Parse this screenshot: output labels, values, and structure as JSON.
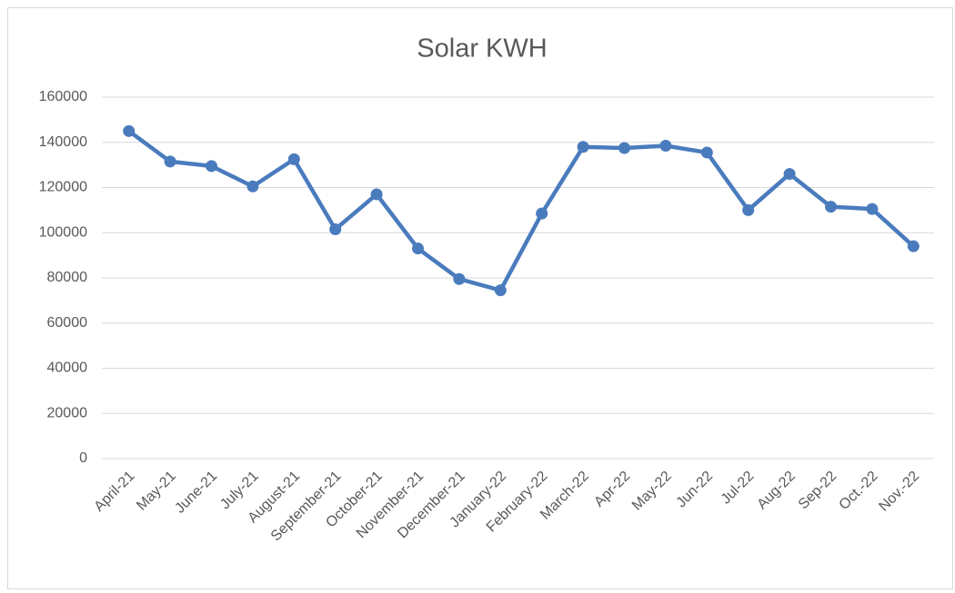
{
  "chart_data": {
    "type": "line",
    "title": "Solar KWH",
    "categories": [
      "April-21",
      "May-21",
      "June-21",
      "July-21",
      "August-21",
      "September-21",
      "October-21",
      "November-21",
      "December-21",
      "January-22",
      "February-22",
      "March-22",
      "Apr-22",
      "May-22",
      "Jun-22",
      "Jul-22",
      "Aug-22",
      "Sep-22",
      "Oct.-22",
      "Nov.-22"
    ],
    "series": [
      {
        "name": "Solar KWH",
        "color": "#4a7bbd",
        "values": [
          145000,
          131500,
          129500,
          120500,
          132500,
          101500,
          117000,
          93000,
          79500,
          74500,
          108500,
          138000,
          137500,
          138500,
          135500,
          110000,
          126000,
          111500,
          110500,
          94000
        ]
      }
    ],
    "ylim": [
      0,
      160000
    ],
    "yticks": [
      0,
      20000,
      40000,
      60000,
      80000,
      100000,
      120000,
      140000,
      160000
    ],
    "grid": true
  }
}
